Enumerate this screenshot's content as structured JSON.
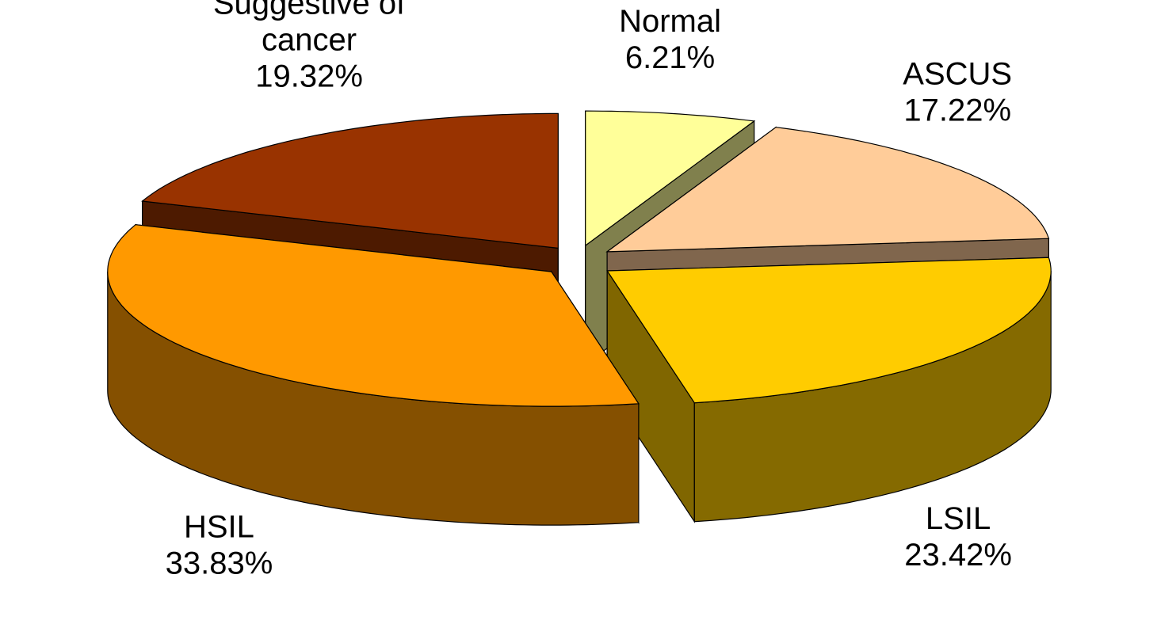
{
  "chart_data": {
    "type": "pie",
    "categories": [
      "Normal",
      "ASCUS",
      "LSIL",
      "HSIL",
      "Suggestive of cancer"
    ],
    "values": [
      6.21,
      17.22,
      23.42,
      33.83,
      19.32
    ],
    "value_labels": [
      "6.21%",
      "17.22%",
      "23.42%",
      "33.83%",
      "19.32%"
    ],
    "colors": [
      "#ffff99",
      "#ffcc99",
      "#ffcc00",
      "#ff9900",
      "#993300"
    ]
  }
}
